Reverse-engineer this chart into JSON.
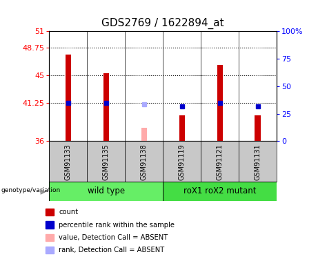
{
  "title": "GDS2769 / 1622894_at",
  "samples": [
    "GSM91133",
    "GSM91135",
    "GSM91138",
    "GSM91119",
    "GSM91121",
    "GSM91131"
  ],
  "ylim_left": [
    36,
    51
  ],
  "ylim_right": [
    0,
    100
  ],
  "yticks_left": [
    36,
    41.25,
    45,
    48.75,
    51
  ],
  "yticks_right": [
    0,
    25,
    50,
    75,
    100
  ],
  "ytick_labels_left": [
    "36",
    "41.25",
    "45",
    "48.75",
    "51"
  ],
  "ytick_labels_right": [
    "0",
    "25",
    "50",
    "75",
    "100%"
  ],
  "hlines": [
    41.25,
    45,
    48.75
  ],
  "bar_values_red": [
    47.8,
    45.3,
    null,
    39.5,
    46.4,
    39.5
  ],
  "bar_values_pink": [
    null,
    null,
    37.8,
    null,
    null,
    null
  ],
  "dot_values_blue": [
    41.25,
    41.25,
    null,
    40.75,
    41.25,
    40.75
  ],
  "dot_values_lightblue": [
    null,
    null,
    41.0,
    null,
    null,
    null
  ],
  "wild_type_label": "wild type",
  "mutant_label": "roX1 roX2 mutant",
  "genotype_label": "genotype/variation",
  "legend_items": [
    {
      "label": "count",
      "color": "#cc0000"
    },
    {
      "label": "percentile rank within the sample",
      "color": "#0000cc"
    },
    {
      "label": "value, Detection Call = ABSENT",
      "color": "#ffaaaa"
    },
    {
      "label": "rank, Detection Call = ABSENT",
      "color": "#aaaaff"
    }
  ],
  "bar_color_red": "#cc0000",
  "bar_color_pink": "#ffaaaa",
  "dot_color_blue": "#0000cc",
  "dot_color_lightblue": "#aaaaff",
  "bg_plot": "#ffffff",
  "bg_sample_row": "#c8c8c8",
  "bg_wild_type": "#66ee66",
  "bg_mutant": "#44dd44",
  "title_fontsize": 11,
  "tick_fontsize": 8,
  "bar_width": 0.15
}
